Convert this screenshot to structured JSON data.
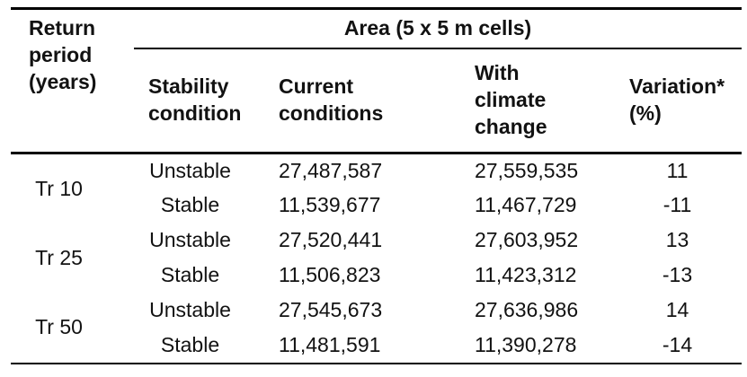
{
  "colors": {
    "background": "#ffffff",
    "text": "#121212",
    "rule": "#000000"
  },
  "table": {
    "corner_header": "Return period (years)",
    "group_header": "Area (5 x 5 m cells)",
    "columns": [
      "Stability condition",
      "Current conditions",
      "With climate change",
      "Variation* (%)"
    ],
    "groups": [
      {
        "period": "Tr 10",
        "rows": [
          {
            "condition": "Unstable",
            "current": "27,487,587",
            "with_climate_change": "27,559,535",
            "variation_pct": "11"
          },
          {
            "condition": "Stable",
            "current": "11,539,677",
            "with_climate_change": "11,467,729",
            "variation_pct": "-11"
          }
        ]
      },
      {
        "period": "Tr 25",
        "rows": [
          {
            "condition": "Unstable",
            "current": "27,520,441",
            "with_climate_change": "27,603,952",
            "variation_pct": "13"
          },
          {
            "condition": "Stable",
            "current": "11,506,823",
            "with_climate_change": "11,423,312",
            "variation_pct": "-13"
          }
        ]
      },
      {
        "period": "Tr 50",
        "rows": [
          {
            "condition": "Unstable",
            "current": "27,545,673",
            "with_climate_change": "27,636,986",
            "variation_pct": "14"
          },
          {
            "condition": "Stable",
            "current": "11,481,591",
            "with_climate_change": "11,390,278",
            "variation_pct": "-14"
          }
        ]
      }
    ]
  }
}
